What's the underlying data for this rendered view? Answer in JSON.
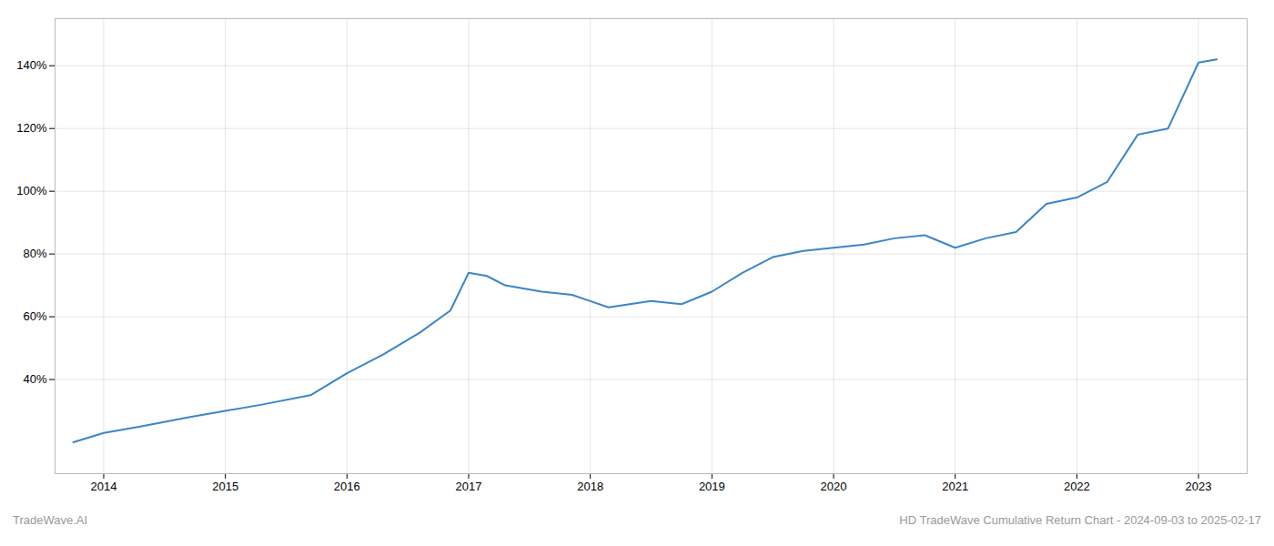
{
  "chart_data": {
    "type": "line",
    "x": [
      2013.75,
      2014.0,
      2014.3,
      2014.7,
      2015.0,
      2015.3,
      2015.7,
      2016.0,
      2016.3,
      2016.6,
      2016.85,
      2017.0,
      2017.15,
      2017.3,
      2017.6,
      2017.85,
      2018.0,
      2018.15,
      2018.5,
      2018.75,
      2019.0,
      2019.25,
      2019.5,
      2019.75,
      2020.0,
      2020.25,
      2020.5,
      2020.75,
      2021.0,
      2021.25,
      2021.5,
      2021.75,
      2022.0,
      2022.25,
      2022.5,
      2022.75,
      2023.0,
      2023.15
    ],
    "values": [
      20,
      23,
      25,
      28,
      30,
      32,
      35,
      42,
      48,
      55,
      62,
      74,
      73,
      70,
      68,
      67,
      65,
      63,
      65,
      64,
      68,
      74,
      79,
      81,
      82,
      83,
      85,
      86,
      82,
      85,
      87,
      96,
      98,
      103,
      118,
      120,
      141,
      142
    ],
    "color": "#3a86c8",
    "xlim": [
      2013.6,
      2023.4
    ],
    "xticks": [
      2014,
      2015,
      2016,
      2017,
      2018,
      2019,
      2020,
      2021,
      2022,
      2023
    ],
    "ylim": [
      10,
      155
    ],
    "yticks": [
      {
        "value": 40,
        "label": "40%"
      },
      {
        "value": 60,
        "label": "60%"
      },
      {
        "value": 80,
        "label": "80%"
      },
      {
        "value": 100,
        "label": "100%"
      },
      {
        "value": 120,
        "label": "120%"
      },
      {
        "value": 140,
        "label": "140%"
      }
    ],
    "grid": true,
    "annotations": [
      "TradeWave.AI",
      "HD TradeWave Cumulative Return Chart - 2024-09-03 to 2025-02-17"
    ]
  }
}
